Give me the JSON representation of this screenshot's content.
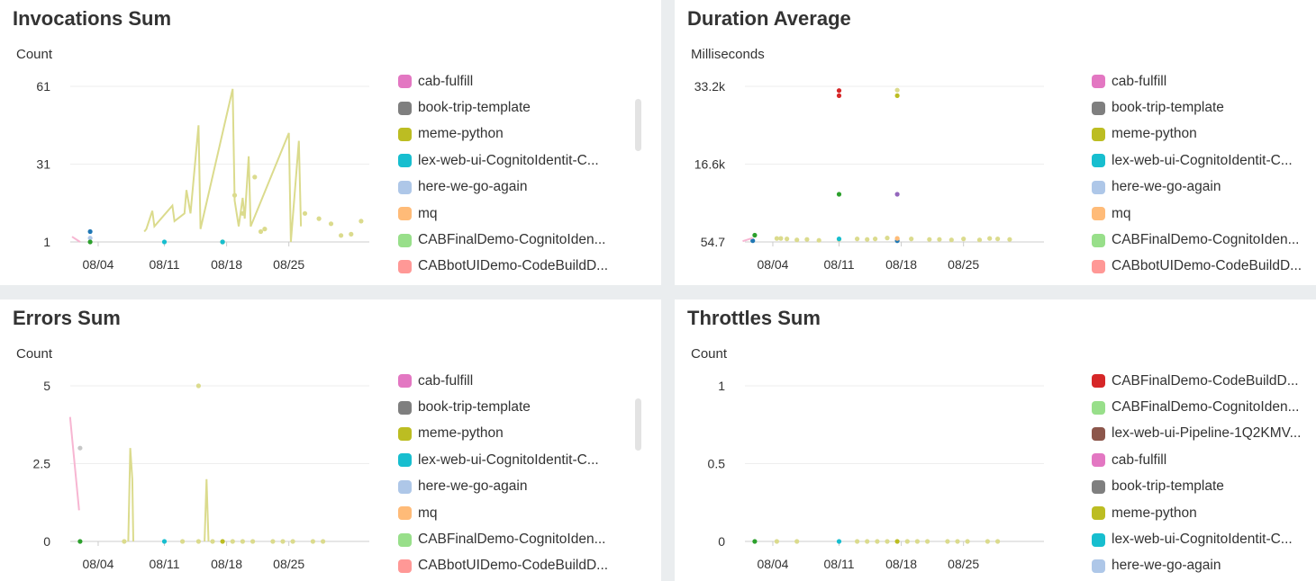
{
  "colors": {
    "cab-fulfill": "#e377c2",
    "book-trip-template": "#7f7f7f",
    "meme-python": "#bcbd22",
    "lex-web-ui-CognitoIdentit-C...": "#17becf",
    "here-we-go-again": "#aec7e8",
    "mq": "#ffbb78",
    "CABFinalDemo-CognitoIden...": "#98df8a",
    "CABbotUIDemo-CodeBuildD...": "#ff9896",
    "CABFinalDemo-CodeBuildD...": "#d62728",
    "lex-web-ui-Pipeline-1Q2KMV...": "#8c564b",
    "blue": "#1f77b4",
    "dark-green": "#2ca02c",
    "dark-red": "#d62728",
    "purple": "#9467bd",
    "light-olive": "#dbdb8d",
    "light-grey": "#c7c7c7",
    "pink-light": "#f7b6d2"
  },
  "chart_data": [
    {
      "type": "line",
      "title": "Invocations Sum",
      "ylabel": "Count",
      "xlabel": "",
      "x_ticks": [
        "08/04",
        "08/11",
        "08/18",
        "08/25"
      ],
      "y_ticks": [
        "61",
        "31",
        "1"
      ],
      "ylim": [
        1,
        61
      ],
      "legend_position": "right",
      "grid": true,
      "legend": [
        "cab-fulfill",
        "book-trip-template",
        "meme-python",
        "lex-web-ui-CognitoIdentit-C...",
        "here-we-go-again",
        "mq",
        "CABFinalDemo-CognitoIden...",
        "CABbotUIDemo-CodeBuildD..."
      ],
      "series": [
        {
          "color_key": "light-olive",
          "line": true,
          "points": [
            [
              3.6,
              5
            ],
            [
              3.7,
              6
            ],
            [
              4.0,
              13
            ],
            [
              4.1,
              7
            ],
            [
              5.0,
              15
            ],
            [
              5.1,
              9
            ],
            [
              5.6,
              12
            ],
            [
              5.7,
              21
            ],
            [
              5.9,
              12
            ],
            [
              6.3,
              46
            ],
            [
              6.4,
              6
            ],
            [
              8.0,
              60
            ],
            [
              8.1,
              17
            ],
            [
              8.3,
              7
            ],
            [
              8.5,
              18
            ],
            [
              8.6,
              10
            ],
            [
              8.8,
              34
            ],
            [
              8.9,
              7
            ],
            [
              10.8,
              43
            ],
            [
              10.9,
              1
            ],
            [
              11.3,
              40
            ],
            [
              11.4,
              7
            ]
          ]
        },
        {
          "color_key": "light-olive",
          "line": false,
          "points": [
            [
              8.1,
              19
            ],
            [
              8.5,
              12
            ],
            [
              9.1,
              26
            ],
            [
              9.4,
              5
            ],
            [
              9.6,
              6
            ],
            [
              11.6,
              12
            ],
            [
              12.3,
              10
            ],
            [
              12.9,
              8
            ],
            [
              13.4,
              3.5
            ],
            [
              13.9,
              4
            ],
            [
              14.4,
              9
            ]
          ]
        },
        {
          "color_key": "blue",
          "line": false,
          "points": [
            [
              0.9,
              5
            ]
          ]
        },
        {
          "color_key": "here-we-go-again",
          "line": false,
          "points": [
            [
              0.9,
              2.5
            ]
          ]
        },
        {
          "color_key": "pink-light",
          "line": true,
          "points": [
            [
              0,
              3
            ],
            [
              0.4,
              1
            ]
          ]
        },
        {
          "color_key": "dark-green",
          "line": false,
          "points": [
            [
              0.9,
              1
            ],
            [
              7.5,
              1
            ]
          ]
        },
        {
          "color_key": "lex-web-ui-CognitoIdentit-C...",
          "line": false,
          "points": [
            [
              4.6,
              1
            ],
            [
              7.5,
              1
            ]
          ]
        }
      ]
    },
    {
      "type": "line",
      "title": "Duration Average",
      "ylabel": "Milliseconds",
      "xlabel": "",
      "x_ticks": [
        "08/04",
        "08/11",
        "08/18",
        "08/25"
      ],
      "y_ticks": [
        "33.2k",
        "16.6k",
        "54.7"
      ],
      "ylim": [
        54.7,
        33200
      ],
      "legend_position": "right",
      "grid": true,
      "legend": [
        "cab-fulfill",
        "book-trip-template",
        "meme-python",
        "lex-web-ui-CognitoIdentit-C...",
        "here-we-go-again",
        "mq",
        "CABFinalDemo-CognitoIden...",
        "CABbotUIDemo-CodeBuildD..."
      ],
      "series": [
        {
          "color_key": "light-olive",
          "line": false,
          "points": [
            [
              1.5,
              800
            ],
            [
              1.7,
              800
            ],
            [
              2.0,
              700
            ],
            [
              2.5,
              500
            ],
            [
              3.0,
              600
            ],
            [
              3.6,
              400
            ],
            [
              4.6,
              600
            ],
            [
              5.5,
              700
            ],
            [
              6.0,
              600
            ],
            [
              6.4,
              700
            ],
            [
              7.0,
              900
            ],
            [
              7.5,
              800
            ],
            [
              8.2,
              700
            ],
            [
              9.1,
              600
            ],
            [
              9.6,
              600
            ],
            [
              10.2,
              500
            ],
            [
              10.8,
              700
            ],
            [
              11.6,
              500
            ],
            [
              12.1,
              800
            ],
            [
              12.5,
              700
            ],
            [
              13.1,
              600
            ]
          ]
        },
        {
          "color_key": "dark-red",
          "line": false,
          "points": [
            [
              4.6,
              32300
            ],
            [
              4.6,
              31200
            ]
          ]
        },
        {
          "color_key": "light-olive",
          "line": false,
          "points": [
            [
              7.5,
              32400
            ]
          ]
        },
        {
          "color_key": "meme-python",
          "line": false,
          "points": [
            [
              7.5,
              31200
            ]
          ]
        },
        {
          "color_key": "dark-green",
          "line": false,
          "points": [
            [
              4.6,
              10200
            ],
            [
              0.4,
              1500
            ]
          ]
        },
        {
          "color_key": "purple",
          "line": false,
          "points": [
            [
              7.5,
              10200
            ]
          ]
        },
        {
          "color_key": "lex-web-ui-CognitoIdentit-C...",
          "line": false,
          "points": [
            [
              4.6,
              700
            ]
          ]
        },
        {
          "color_key": "blue",
          "line": false,
          "points": [
            [
              0.3,
              300
            ],
            [
              7.5,
              300
            ]
          ]
        },
        {
          "color_key": "mq",
          "line": false,
          "points": [
            [
              7.5,
              800
            ]
          ]
        },
        {
          "color_key": "pink-light",
          "line": true,
          "points": [
            [
              -0.2,
              200
            ],
            [
              0.3,
              900
            ]
          ]
        }
      ]
    },
    {
      "type": "line",
      "title": "Errors Sum",
      "ylabel": "Count",
      "xlabel": "",
      "x_ticks": [
        "08/04",
        "08/11",
        "08/18",
        "08/25"
      ],
      "y_ticks": [
        "5",
        "2.5",
        "0"
      ],
      "ylim": [
        0,
        5
      ],
      "legend_position": "right",
      "grid": true,
      "legend": [
        "cab-fulfill",
        "book-trip-template",
        "meme-python",
        "lex-web-ui-CognitoIdentit-C...",
        "here-we-go-again",
        "mq",
        "CABFinalDemo-CognitoIden...",
        "CABbotUIDemo-CodeBuildD..."
      ],
      "series": [
        {
          "color_key": "pink-light",
          "line": true,
          "points": [
            [
              -0.1,
              4
            ],
            [
              0.35,
              1
            ]
          ]
        },
        {
          "color_key": "light-grey",
          "line": false,
          "points": [
            [
              0.4,
              3
            ]
          ]
        },
        {
          "color_key": "light-olive",
          "line": true,
          "points": [
            [
              2.8,
              0
            ],
            [
              2.9,
              3
            ],
            [
              3.0,
              2
            ],
            [
              3.05,
              0
            ]
          ]
        },
        {
          "color_key": "light-olive",
          "line": true,
          "points": [
            [
              6.6,
              0
            ],
            [
              6.7,
              2
            ],
            [
              6.8,
              0
            ]
          ]
        },
        {
          "color_key": "light-olive",
          "line": false,
          "points": [
            [
              6.3,
              5
            ],
            [
              2.6,
              0
            ],
            [
              5.5,
              0
            ],
            [
              6.3,
              0
            ],
            [
              7.0,
              0
            ],
            [
              8.0,
              0
            ],
            [
              8.5,
              0
            ],
            [
              9.0,
              0
            ],
            [
              10.0,
              0
            ],
            [
              10.5,
              0
            ],
            [
              11.0,
              0
            ],
            [
              12.0,
              0
            ],
            [
              12.5,
              0
            ]
          ]
        },
        {
          "color_key": "dark-green",
          "line": false,
          "points": [
            [
              0.4,
              0
            ]
          ]
        },
        {
          "color_key": "lex-web-ui-CognitoIdentit-C...",
          "line": false,
          "points": [
            [
              4.6,
              0
            ]
          ]
        },
        {
          "color_key": "meme-python",
          "line": false,
          "points": [
            [
              7.5,
              0
            ]
          ]
        }
      ]
    },
    {
      "type": "line",
      "title": "Throttles Sum",
      "ylabel": "Count",
      "xlabel": "",
      "x_ticks": [
        "08/04",
        "08/11",
        "08/18",
        "08/25"
      ],
      "y_ticks": [
        "1",
        "0.5",
        "0"
      ],
      "ylim": [
        0,
        1
      ],
      "legend_position": "right",
      "grid": true,
      "legend": [
        "CABFinalDemo-CodeBuildD...",
        "CABFinalDemo-CognitoIden...",
        "lex-web-ui-Pipeline-1Q2KMV...",
        "cab-fulfill",
        "book-trip-template",
        "meme-python",
        "lex-web-ui-CognitoIdentit-C...",
        "here-we-go-again"
      ],
      "series": [
        {
          "color_key": "light-olive",
          "line": false,
          "points": [
            [
              1.5,
              0
            ],
            [
              2.5,
              0
            ],
            [
              5.5,
              0
            ],
            [
              6.0,
              0
            ],
            [
              6.5,
              0
            ],
            [
              7.0,
              0
            ],
            [
              8.0,
              0
            ],
            [
              8.5,
              0
            ],
            [
              9.0,
              0
            ],
            [
              10.0,
              0
            ],
            [
              10.5,
              0
            ],
            [
              11.0,
              0
            ],
            [
              12.0,
              0
            ],
            [
              12.5,
              0
            ]
          ]
        },
        {
          "color_key": "dark-green",
          "line": false,
          "points": [
            [
              0.4,
              0
            ]
          ]
        },
        {
          "color_key": "lex-web-ui-CognitoIdentit-C...",
          "line": false,
          "points": [
            [
              4.6,
              0
            ]
          ]
        },
        {
          "color_key": "meme-python",
          "line": false,
          "points": [
            [
              7.5,
              0
            ]
          ]
        }
      ]
    }
  ]
}
